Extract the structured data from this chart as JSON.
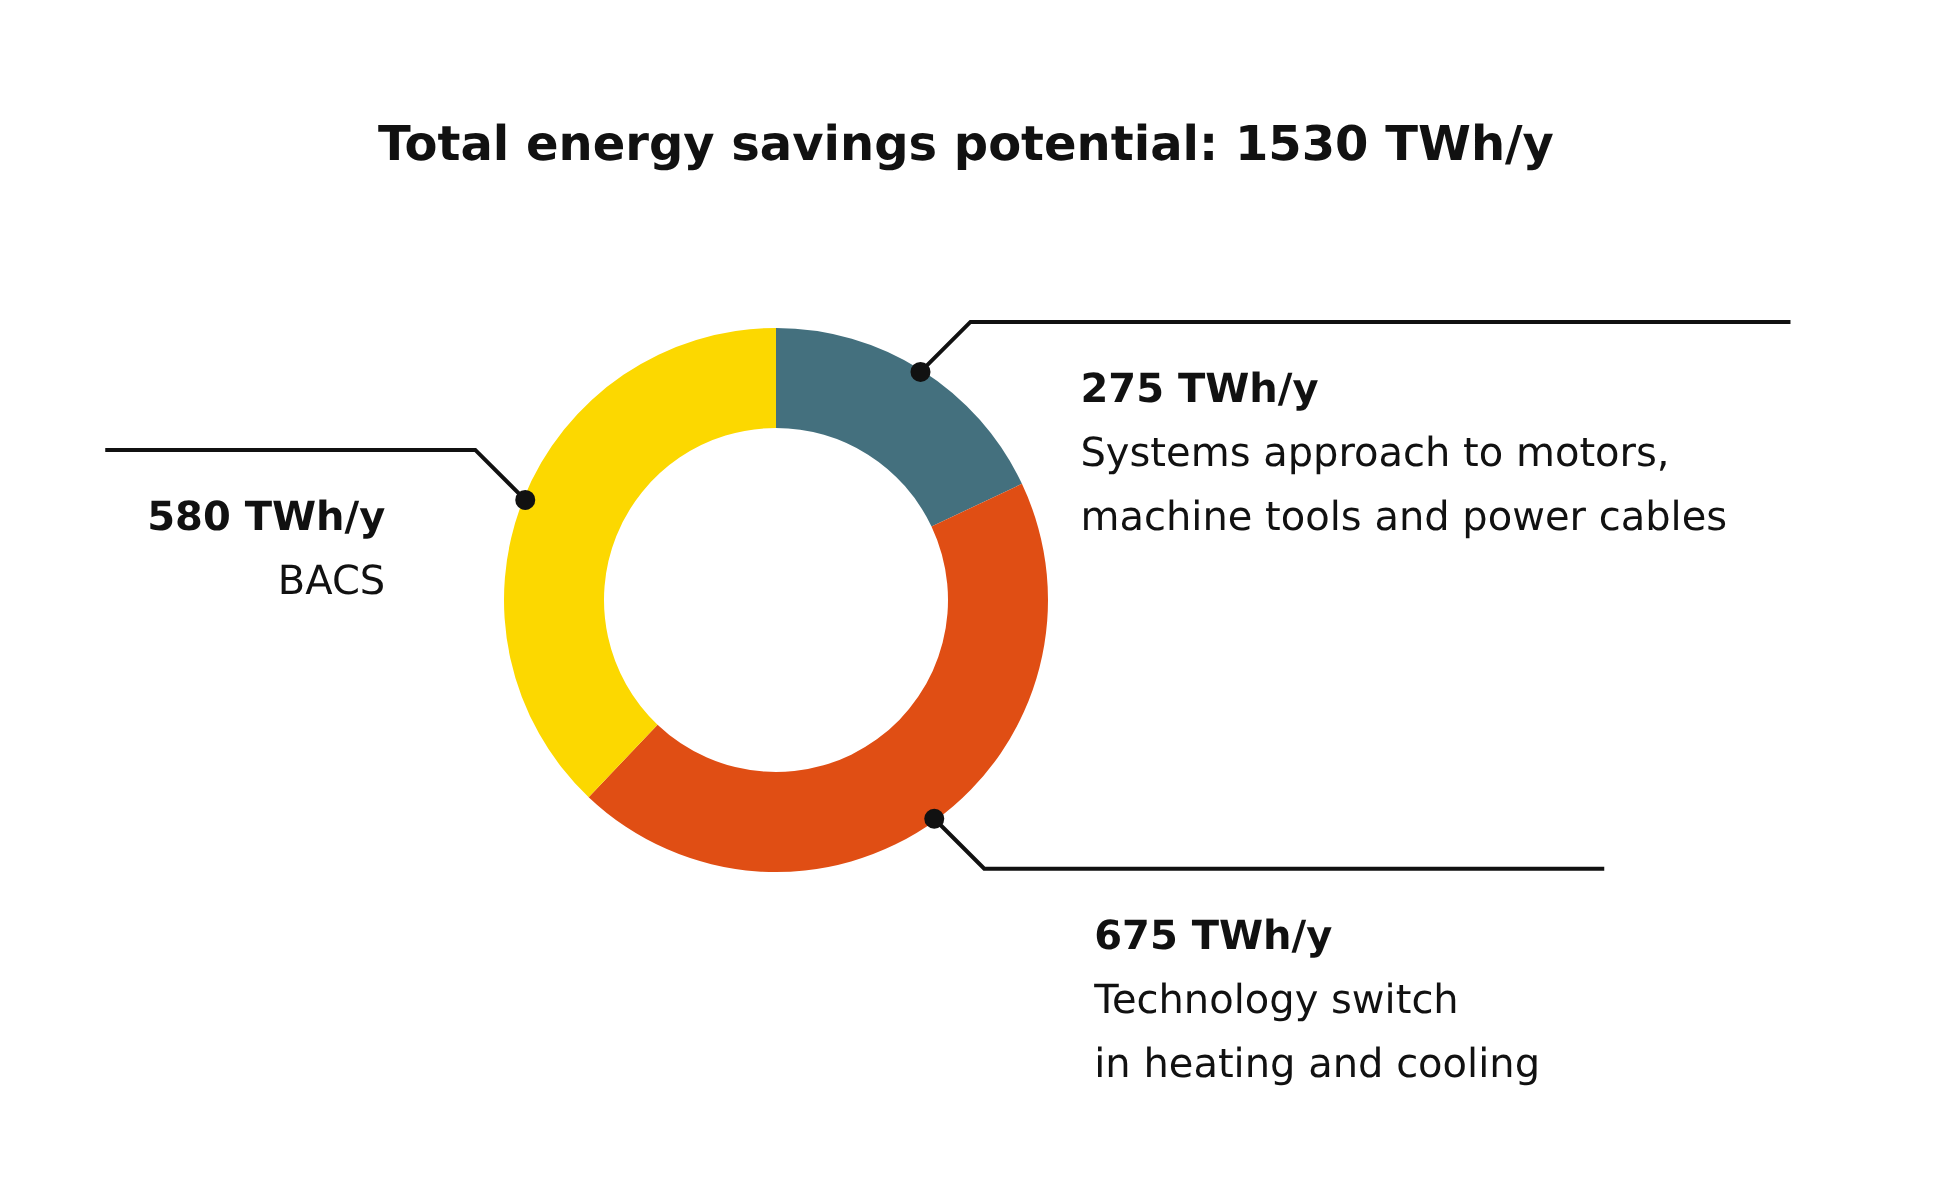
{
  "chart_data": {
    "type": "donut",
    "title": "Total energy savings potential: 1530 TWh/y",
    "categories": [
      "Systems approach to motors,\nmachine tools and power cables",
      "Technology switch\nin heating and cooling",
      "BACS"
    ],
    "values": [
      275,
      675,
      580
    ],
    "colors": [
      "#44707e",
      "#e04e14",
      "#fcd800"
    ],
    "value_labels": [
      "275 TWh/y",
      "675 TWh/y",
      "580 TWh/y"
    ]
  }
}
